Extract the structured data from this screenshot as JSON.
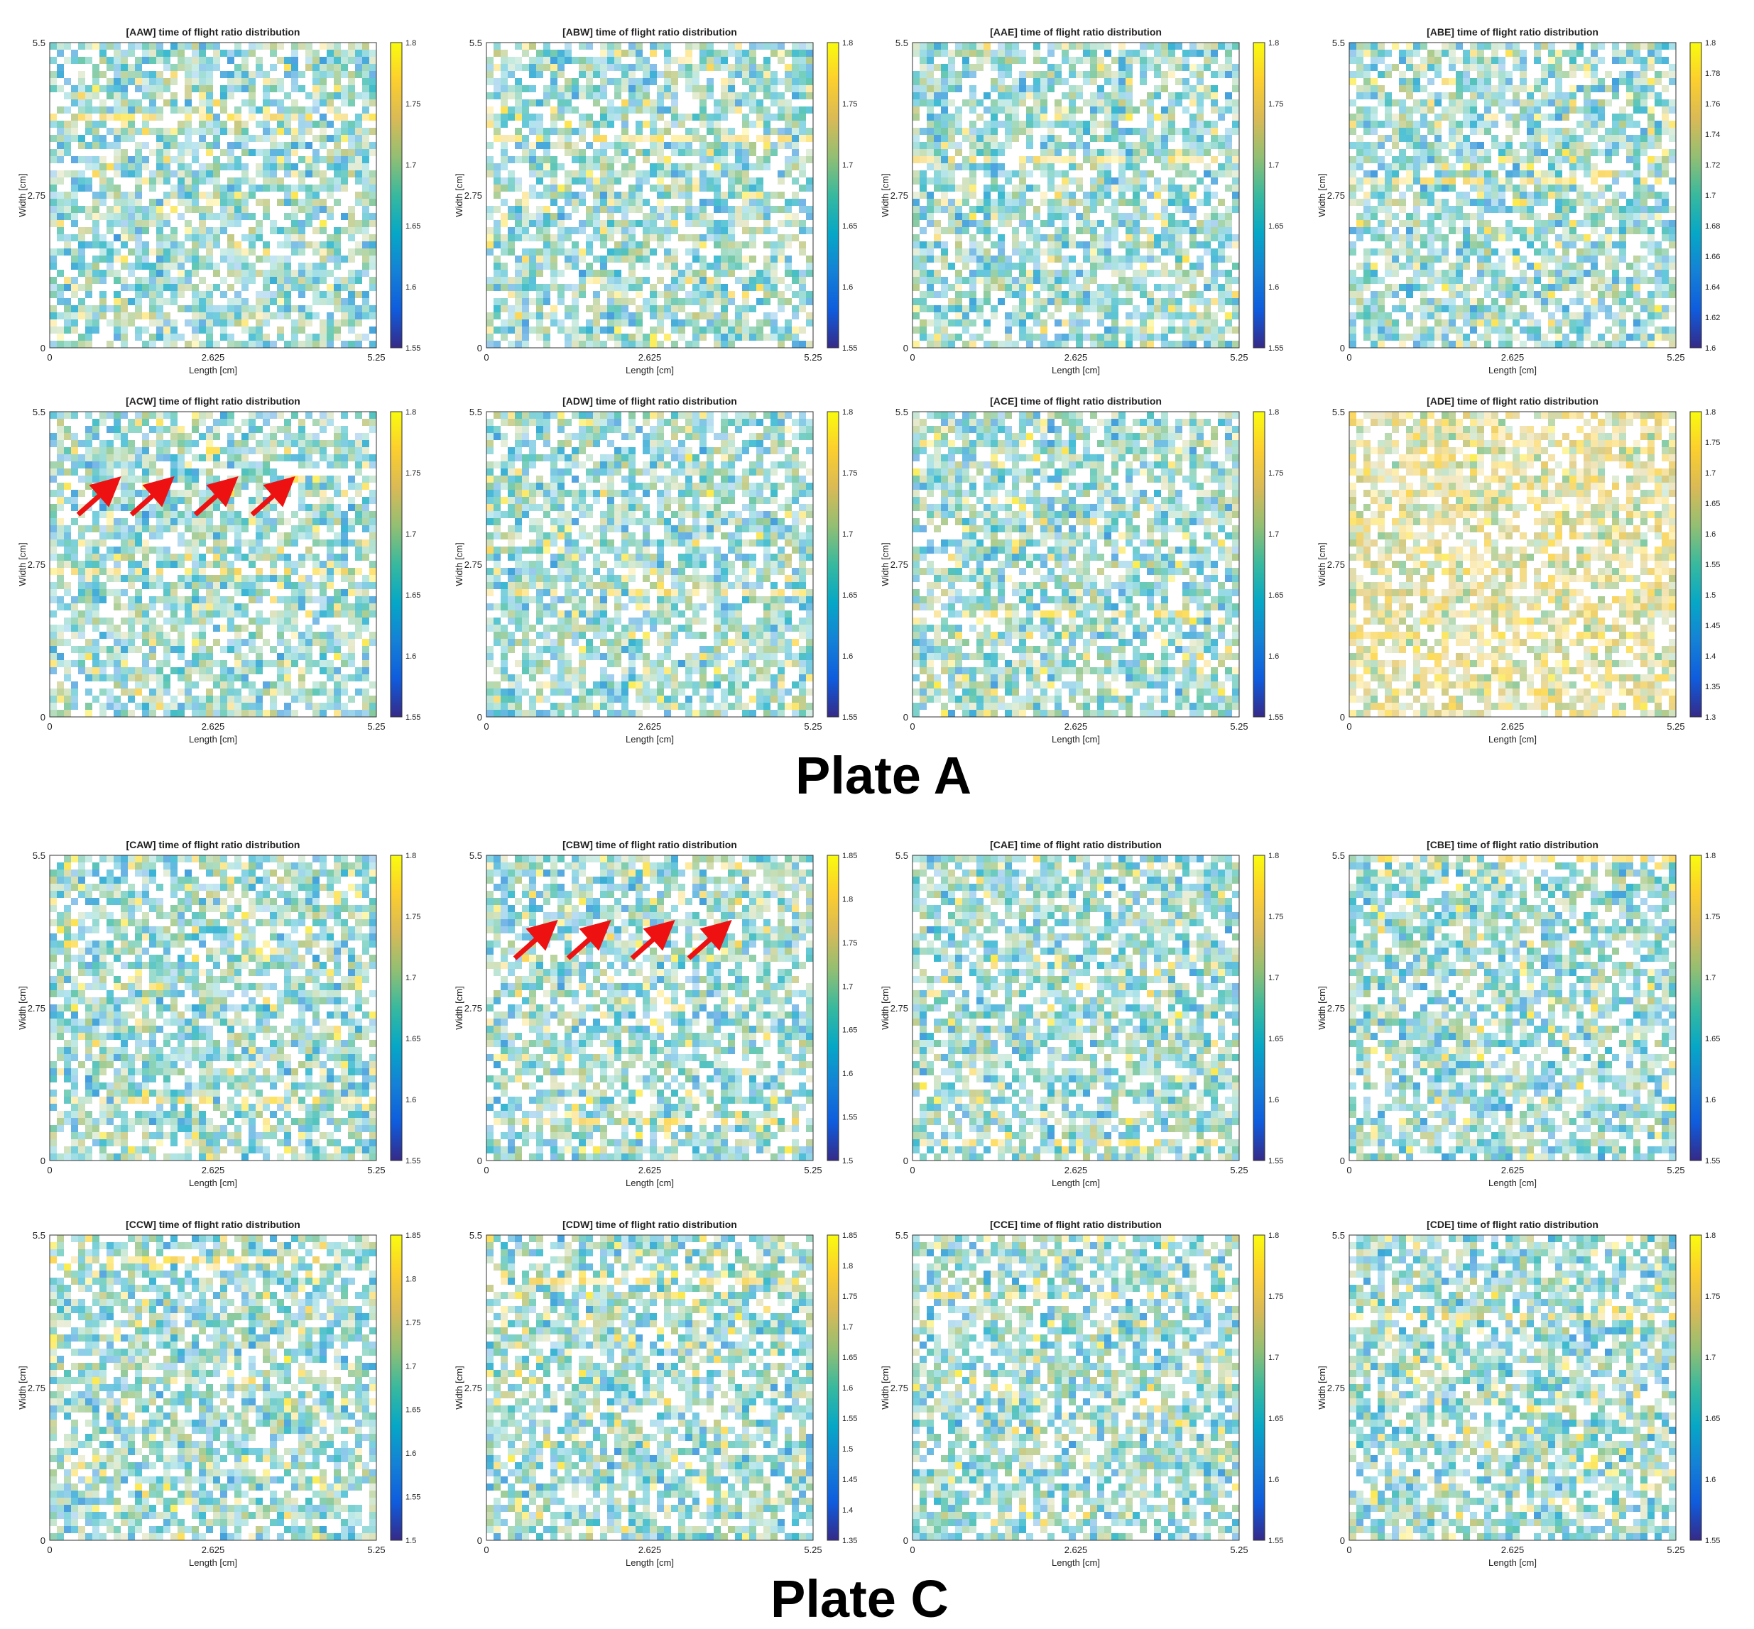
{
  "plates": [
    {
      "label": "Plate A"
    },
    {
      "label": "Plate C"
    }
  ],
  "colormap": {
    "name": "parula",
    "stops": [
      "#352a87",
      "#0f5cdd",
      "#1481d6",
      "#06a7c6",
      "#38b99e",
      "#92bf73",
      "#d9ba56",
      "#fcce2e",
      "#f9fb0e"
    ]
  },
  "annotation_color": "#ee1111",
  "chart_data": [
    {
      "type": "heatmap",
      "title": "[AAW] time of flight ratio distribution",
      "xlabel": "Length [cm]",
      "ylabel": "Width [cm]",
      "xticks": [
        "0",
        "2.625",
        "5.25"
      ],
      "yticks": [
        "0",
        "2.75",
        "5.5"
      ],
      "xlim": [
        0,
        5.25
      ],
      "ylim": [
        0,
        5.5
      ],
      "colorbar": {
        "ticks": [
          "1.55",
          "1.6",
          "1.65",
          "1.7",
          "1.75",
          "1.8"
        ],
        "range": [
          1.55,
          1.8
        ]
      },
      "arrows": 0
    },
    {
      "type": "heatmap",
      "title": "[ABW] time of flight ratio distribution",
      "xlabel": "Length [cm]",
      "ylabel": "Width [cm]",
      "xticks": [
        "0",
        "2.625",
        "5.25"
      ],
      "yticks": [
        "0",
        "2.75",
        "5.5"
      ],
      "xlim": [
        0,
        5.25
      ],
      "ylim": [
        0,
        5.5
      ],
      "colorbar": {
        "ticks": [
          "1.55",
          "1.6",
          "1.65",
          "1.7",
          "1.75",
          "1.8"
        ],
        "range": [
          1.55,
          1.8
        ]
      },
      "arrows": 0
    },
    {
      "type": "heatmap",
      "title": "[AAE] time of flight ratio distribution",
      "xlabel": "Length [cm]",
      "ylabel": "Width [cm]",
      "xticks": [
        "0",
        "2.625",
        "5.25"
      ],
      "yticks": [
        "0",
        "2.75",
        "5.5"
      ],
      "xlim": [
        0,
        5.25
      ],
      "ylim": [
        0,
        5.5
      ],
      "colorbar": {
        "ticks": [
          "1.55",
          "1.6",
          "1.65",
          "1.7",
          "1.75",
          "1.8"
        ],
        "range": [
          1.55,
          1.8
        ]
      },
      "arrows": 0
    },
    {
      "type": "heatmap",
      "title": "[ABE] time of flight ratio distribution",
      "xlabel": "Length [cm]",
      "ylabel": "Width [cm]",
      "xticks": [
        "0",
        "2.625",
        "5.25"
      ],
      "yticks": [
        "0",
        "2.75",
        "5.5"
      ],
      "xlim": [
        0,
        5.25
      ],
      "ylim": [
        0,
        5.5
      ],
      "colorbar": {
        "ticks": [
          "1.6",
          "1.62",
          "1.64",
          "1.66",
          "1.68",
          "1.7",
          "1.72",
          "1.74",
          "1.76",
          "1.78",
          "1.8"
        ],
        "range": [
          1.6,
          1.8
        ]
      },
      "arrows": 0
    },
    {
      "type": "heatmap",
      "title": "[ACW] time of flight ratio distribution",
      "xlabel": "Length [cm]",
      "ylabel": "Width [cm]",
      "xticks": [
        "0",
        "2.625",
        "5.25"
      ],
      "yticks": [
        "0",
        "2.75",
        "5.5"
      ],
      "xlim": [
        0,
        5.25
      ],
      "ylim": [
        0,
        5.5
      ],
      "colorbar": {
        "ticks": [
          "1.55",
          "1.6",
          "1.65",
          "1.7",
          "1.75",
          "1.8"
        ],
        "range": [
          1.55,
          1.8
        ]
      },
      "arrows": 4
    },
    {
      "type": "heatmap",
      "title": "[ADW] time of flight ratio distribution",
      "xlabel": "Length [cm]",
      "ylabel": "Width [cm]",
      "xticks": [
        "0",
        "2.625",
        "5.25"
      ],
      "yticks": [
        "0",
        "2.75",
        "5.5"
      ],
      "xlim": [
        0,
        5.25
      ],
      "ylim": [
        0,
        5.5
      ],
      "colorbar": {
        "ticks": [
          "1.55",
          "1.6",
          "1.65",
          "1.7",
          "1.75",
          "1.8"
        ],
        "range": [
          1.55,
          1.8
        ]
      },
      "arrows": 0
    },
    {
      "type": "heatmap",
      "title": "[ACE] time of flight ratio distribution",
      "xlabel": "Length [cm]",
      "ylabel": "Width [cm]",
      "xticks": [
        "0",
        "2.625",
        "5.25"
      ],
      "yticks": [
        "0",
        "2.75",
        "5.5"
      ],
      "xlim": [
        0,
        5.25
      ],
      "ylim": [
        0,
        5.5
      ],
      "colorbar": {
        "ticks": [
          "1.55",
          "1.6",
          "1.65",
          "1.7",
          "1.75",
          "1.8"
        ],
        "range": [
          1.55,
          1.8
        ]
      },
      "arrows": 0
    },
    {
      "type": "heatmap",
      "title": "[ADE] time of flight ratio distribution",
      "xlabel": "Length [cm]",
      "ylabel": "Width [cm]",
      "xticks": [
        "0",
        "2.625",
        "5.25"
      ],
      "yticks": [
        "0",
        "2.75",
        "5.5"
      ],
      "xlim": [
        0,
        5.25
      ],
      "ylim": [
        0,
        5.5
      ],
      "colorbar": {
        "ticks": [
          "1.3",
          "1.35",
          "1.4",
          "1.45",
          "1.5",
          "1.55",
          "1.6",
          "1.65",
          "1.7",
          "1.75",
          "1.8"
        ],
        "range": [
          1.3,
          1.8
        ]
      },
      "arrows": 0
    },
    {
      "type": "heatmap",
      "title": "[CAW] time of flight ratio distribution",
      "xlabel": "Length [cm]",
      "ylabel": "Width [cm]",
      "xticks": [
        "0",
        "2.625",
        "5.25"
      ],
      "yticks": [
        "0",
        "2.75",
        "5.5"
      ],
      "xlim": [
        0,
        5.25
      ],
      "ylim": [
        0,
        5.5
      ],
      "colorbar": {
        "ticks": [
          "1.55",
          "1.6",
          "1.65",
          "1.7",
          "1.75",
          "1.8"
        ],
        "range": [
          1.55,
          1.8
        ]
      },
      "arrows": 0
    },
    {
      "type": "heatmap",
      "title": "[CBW] time of flight ratio distribution",
      "xlabel": "Length [cm]",
      "ylabel": "Width [cm]",
      "xticks": [
        "0",
        "2.625",
        "5.25"
      ],
      "yticks": [
        "0",
        "2.75",
        "5.5"
      ],
      "xlim": [
        0,
        5.25
      ],
      "ylim": [
        0,
        5.5
      ],
      "colorbar": {
        "ticks": [
          "1.5",
          "1.55",
          "1.6",
          "1.65",
          "1.7",
          "1.75",
          "1.8",
          "1.85"
        ],
        "range": [
          1.5,
          1.85
        ]
      },
      "arrows": 4
    },
    {
      "type": "heatmap",
      "title": "[CAE] time of flight ratio distribution",
      "xlabel": "Length [cm]",
      "ylabel": "Width [cm]",
      "xticks": [
        "0",
        "2.625",
        "5.25"
      ],
      "yticks": [
        "0",
        "2.75",
        "5.5"
      ],
      "xlim": [
        0,
        5.25
      ],
      "ylim": [
        0,
        5.5
      ],
      "colorbar": {
        "ticks": [
          "1.55",
          "1.6",
          "1.65",
          "1.7",
          "1.75",
          "1.8"
        ],
        "range": [
          1.55,
          1.8
        ]
      },
      "arrows": 0
    },
    {
      "type": "heatmap",
      "title": "[CBE] time of flight ratio distribution",
      "xlabel": "Length [cm]",
      "ylabel": "Width [cm]",
      "xticks": [
        "0",
        "2.625",
        "5.25"
      ],
      "yticks": [
        "0",
        "2.75",
        "5.5"
      ],
      "xlim": [
        0,
        5.25
      ],
      "ylim": [
        0,
        5.5
      ],
      "colorbar": {
        "ticks": [
          "1.55",
          "1.6",
          "1.65",
          "1.7",
          "1.75",
          "1.8"
        ],
        "range": [
          1.55,
          1.8
        ]
      },
      "arrows": 0
    },
    {
      "type": "heatmap",
      "title": "[CCW] time of flight ratio distribution",
      "xlabel": "Length [cm]",
      "ylabel": "Width [cm]",
      "xticks": [
        "0",
        "2.625",
        "5.25"
      ],
      "yticks": [
        "0",
        "2.75",
        "5.5"
      ],
      "xlim": [
        0,
        5.25
      ],
      "ylim": [
        0,
        5.5
      ],
      "colorbar": {
        "ticks": [
          "1.5",
          "1.55",
          "1.6",
          "1.65",
          "1.7",
          "1.75",
          "1.8",
          "1.85"
        ],
        "range": [
          1.5,
          1.85
        ]
      },
      "arrows": 0
    },
    {
      "type": "heatmap",
      "title": "[CDW] time of flight ratio distribution",
      "xlabel": "Length [cm]",
      "ylabel": "Width [cm]",
      "xticks": [
        "0",
        "2.625",
        "5.25"
      ],
      "yticks": [
        "0",
        "2.75",
        "5.5"
      ],
      "xlim": [
        0,
        5.25
      ],
      "ylim": [
        0,
        5.5
      ],
      "colorbar": {
        "ticks": [
          "1.35",
          "1.4",
          "1.45",
          "1.5",
          "1.55",
          "1.6",
          "1.65",
          "1.7",
          "1.75",
          "1.8",
          "1.85"
        ],
        "range": [
          1.35,
          1.85
        ]
      },
      "arrows": 0
    },
    {
      "type": "heatmap",
      "title": "[CCE] time of flight ratio distribution",
      "xlabel": "Length [cm]",
      "ylabel": "Width [cm]",
      "xticks": [
        "0",
        "2.625",
        "5.25"
      ],
      "yticks": [
        "0",
        "2.75",
        "5.5"
      ],
      "xlim": [
        0,
        5.25
      ],
      "ylim": [
        0,
        5.5
      ],
      "colorbar": {
        "ticks": [
          "1.55",
          "1.6",
          "1.65",
          "1.7",
          "1.75",
          "1.8"
        ],
        "range": [
          1.55,
          1.8
        ]
      },
      "arrows": 0
    },
    {
      "type": "heatmap",
      "title": "[CDE] time of flight ratio distribution",
      "xlabel": "Length [cm]",
      "ylabel": "Width [cm]",
      "xticks": [
        "0",
        "2.625",
        "5.25"
      ],
      "yticks": [
        "0",
        "2.75",
        "5.5"
      ],
      "xlim": [
        0,
        5.25
      ],
      "ylim": [
        0,
        5.5
      ],
      "colorbar": {
        "ticks": [
          "1.55",
          "1.6",
          "1.65",
          "1.7",
          "1.75",
          "1.8"
        ],
        "range": [
          1.55,
          1.8
        ]
      },
      "arrows": 0
    }
  ]
}
